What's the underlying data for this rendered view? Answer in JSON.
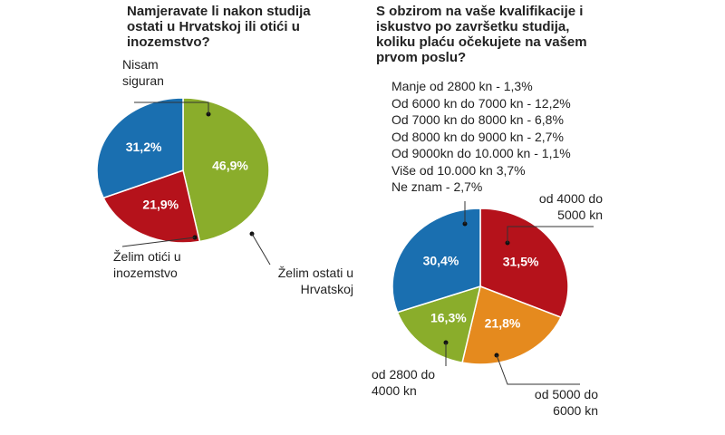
{
  "chart_data": [
    {
      "type": "pie",
      "title": "Namjeravate li nakon studija ostati u Hrvatskoj ili otići u inozemstvo?",
      "categories": [
        "Želim ostati u Hrvatskoj",
        "Želim otići u inozemstvo",
        "Nisam siguran"
      ],
      "values": [
        46.9,
        21.9,
        31.2
      ],
      "value_labels": [
        "46,9%",
        "21,9%",
        "31,2%"
      ],
      "colors": [
        "#8aad2b",
        "#b5121b",
        "#1a6fb0"
      ]
    },
    {
      "type": "pie",
      "title": "S obzirom na vaše kvalifikacije i iskustvo po završetku studija, koliku plaću očekujete na vašem prvom poslu?",
      "notes": [
        "Manje od 2800 kn - 1,3%",
        "Od 6000 kn do 7000 kn - 12,2%",
        "Od 7000 kn do 8000 kn - 6,8%",
        "Od 8000 kn do 9000 kn - 2,7%",
        "Od  9000kn do 10.000 kn - 1,1%",
        "Više od 10.000 kn 3,7%",
        "Ne znam - 2,7%"
      ],
      "categories": [
        "od 4000 do 5000 kn",
        "od 5000 do 6000 kn",
        "od 2800 do 4000 kn",
        null
      ],
      "values": [
        31.5,
        21.8,
        16.3,
        30.4
      ],
      "value_labels": [
        "31,5%",
        "21,8%",
        "16,3%",
        "30,4%"
      ],
      "colors": [
        "#b5121b",
        "#e58a1e",
        "#8aad2b",
        "#1a6fb0"
      ]
    }
  ]
}
